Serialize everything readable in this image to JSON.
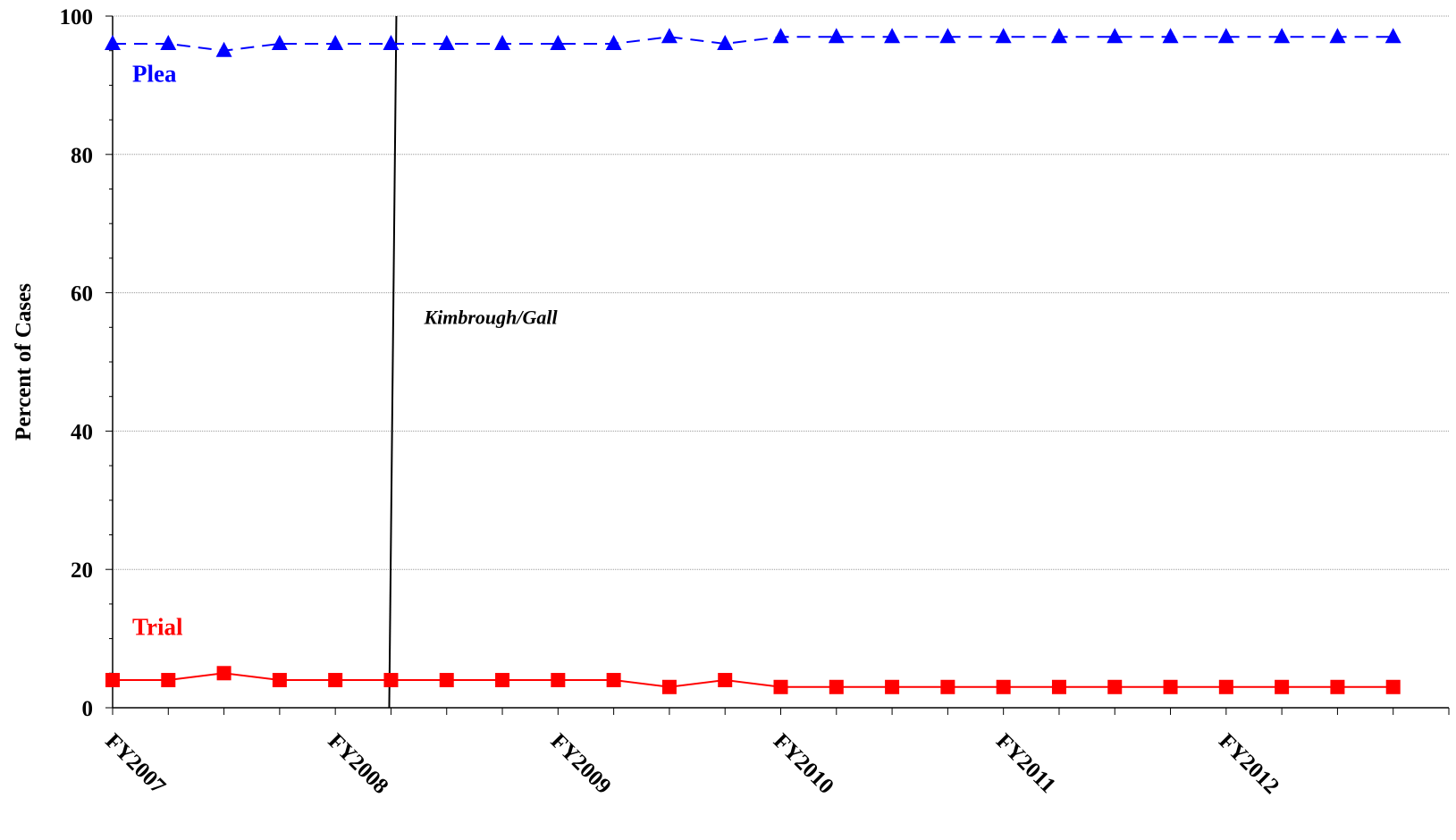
{
  "chart_data": {
    "type": "line",
    "ylabel": "Percent of Cases",
    "xlabel": "",
    "ylim": [
      0,
      100
    ],
    "yticks": [
      0,
      20,
      40,
      60,
      80,
      100
    ],
    "x_tick_labels": [
      "FY2007",
      "FY2008",
      "FY2009",
      "FY2010",
      "FY2011",
      "FY2012"
    ],
    "quarters_per_label": 4,
    "grid": "horizontal",
    "series": [
      {
        "name": "Plea",
        "color": "#0000ff",
        "marker": "triangle",
        "line_style": "dashed",
        "values": [
          96,
          96,
          95,
          96,
          96,
          96,
          96,
          96,
          96,
          96,
          97,
          96,
          97,
          97,
          97,
          97,
          97,
          97,
          97,
          97,
          97,
          97,
          97,
          97
        ]
      },
      {
        "name": "Trial",
        "color": "#ff0000",
        "marker": "square",
        "line_style": "solid",
        "values": [
          4,
          4,
          5,
          4,
          4,
          4,
          4,
          4,
          4,
          4,
          3,
          4,
          3,
          3,
          3,
          3,
          3,
          3,
          3,
          3,
          3,
          3,
          3,
          3
        ]
      }
    ],
    "annotations": [
      {
        "text": "Kimbrough/Gall",
        "x_index": 5
      }
    ]
  }
}
